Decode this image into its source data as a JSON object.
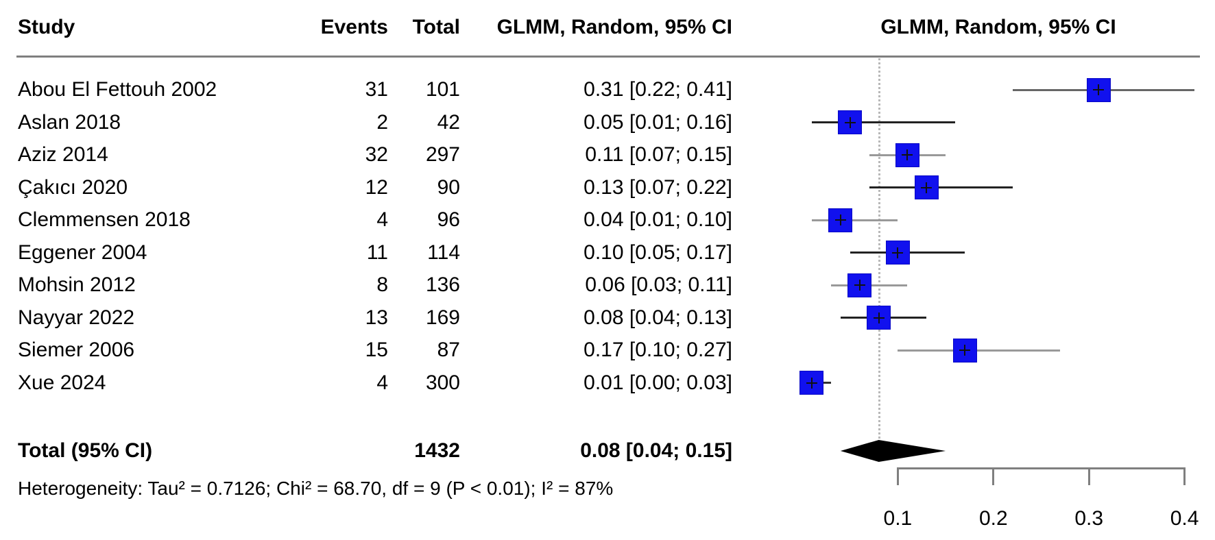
{
  "table": {
    "headers": {
      "study": "Study",
      "events": "Events",
      "total": "Total",
      "effect": "GLMM, Random, 95% CI",
      "plot": "GLMM, Random, 95% CI"
    },
    "rows": [
      {
        "study": "Abou El Fettouh 2002",
        "events": "31",
        "total": "101",
        "effect_label": "0.31 [0.22; 0.41]"
      },
      {
        "study": "Aslan 2018",
        "events": "2",
        "total": "42",
        "effect_label": "0.05 [0.01; 0.16]"
      },
      {
        "study": "Aziz 2014",
        "events": "32",
        "total": "297",
        "effect_label": "0.11 [0.07; 0.15]"
      },
      {
        "study": "Çakıcı 2020",
        "events": "12",
        "total": "90",
        "effect_label": "0.13 [0.07; 0.22]"
      },
      {
        "study": "Clemmensen 2018",
        "events": "4",
        "total": "96",
        "effect_label": "0.04 [0.01; 0.10]"
      },
      {
        "study": "Eggener 2004",
        "events": "11",
        "total": "114",
        "effect_label": "0.10 [0.05; 0.17]"
      },
      {
        "study": "Mohsin 2012",
        "events": "8",
        "total": "136",
        "effect_label": "0.06 [0.03; 0.11]"
      },
      {
        "study": "Nayyar 2022",
        "events": "13",
        "total": "169",
        "effect_label": "0.08 [0.04; 0.13]"
      },
      {
        "study": "Siemer 2006",
        "events": "15",
        "total": "87",
        "effect_label": "0.17 [0.10; 0.27]"
      },
      {
        "study": "Xue 2024",
        "events": "4",
        "total": "300",
        "effect_label": "0.01 [0.00; 0.03]"
      }
    ],
    "total_row": {
      "label": "Total (95% CI)",
      "total": "1432",
      "effect_label": "0.08 [0.04; 0.15]"
    },
    "heterogeneity": "Heterogeneity: Tau² = 0.7126; Chi² = 68.70, df = 9 (P < 0.01); I² = 87%"
  },
  "chart_data": {
    "type": "forest",
    "title": "",
    "studies": [
      "Abou El Fettouh 2002",
      "Aslan 2018",
      "Aziz 2014",
      "Çakıcı 2020",
      "Clemmensen 2018",
      "Eggener 2004",
      "Mohsin 2012",
      "Nayyar 2022",
      "Siemer 2006",
      "Xue 2024"
    ],
    "events": [
      31,
      2,
      32,
      12,
      4,
      11,
      8,
      13,
      15,
      4
    ],
    "totals": [
      101,
      42,
      297,
      90,
      96,
      114,
      136,
      169,
      87,
      300
    ],
    "estimates": [
      0.31,
      0.05,
      0.11,
      0.13,
      0.04,
      0.1,
      0.06,
      0.08,
      0.17,
      0.01
    ],
    "ci_lower": [
      0.22,
      0.01,
      0.07,
      0.07,
      0.01,
      0.05,
      0.03,
      0.04,
      0.1,
      0.0
    ],
    "ci_upper": [
      0.41,
      0.16,
      0.15,
      0.22,
      0.1,
      0.17,
      0.11,
      0.13,
      0.27,
      0.03
    ],
    "pooled": {
      "estimate": 0.08,
      "ci_lower": 0.04,
      "ci_upper": 0.15,
      "total": 1432
    },
    "heterogeneity": {
      "tau2": 0.7126,
      "chi2": 68.7,
      "df": 9,
      "p": "< 0.01",
      "i2": "87%"
    },
    "model_label": "GLMM, Random, 95% CI",
    "xaxis": {
      "ticks": [
        0.1,
        0.2,
        0.3,
        0.4
      ],
      "tick_labels": [
        "0.1",
        "0.2",
        "0.3",
        "0.4"
      ],
      "range": [
        0,
        0.43
      ],
      "scale": "linear"
    },
    "reference_line": 0.08,
    "legend_position": "none",
    "grid": false
  },
  "colors": {
    "square": "#1111ee",
    "square_border": "#0707c4",
    "diamond": "#000000",
    "axis": "#7f7f7f",
    "reference_dotted": "#b8b8b8",
    "text": "#000000"
  }
}
